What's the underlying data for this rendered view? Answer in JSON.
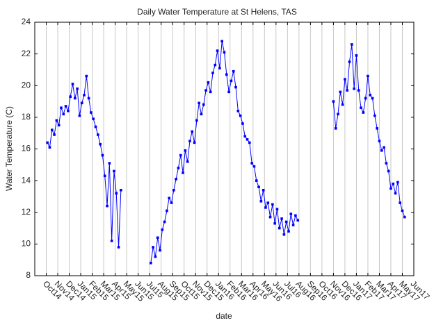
{
  "chart_data": {
    "type": "line",
    "title": "Daily Water Temperature at St Helens, TAS",
    "xlabel": "date",
    "ylabel": "Water Temperature (C)",
    "color": "#0000ff",
    "grid": true,
    "xlim": [
      -1,
      32
    ],
    "ylim": [
      8,
      24
    ],
    "yticks": [
      8,
      10,
      12,
      14,
      16,
      18,
      20,
      22,
      24
    ],
    "xticks": [
      {
        "value": 0,
        "label": "Oct14"
      },
      {
        "value": 1,
        "label": "Nov14"
      },
      {
        "value": 2,
        "label": "Dec14"
      },
      {
        "value": 3,
        "label": "Jan15"
      },
      {
        "value": 4,
        "label": "Feb15"
      },
      {
        "value": 5,
        "label": "Mar15"
      },
      {
        "value": 6,
        "label": "Apr15"
      },
      {
        "value": 7,
        "label": "May15"
      },
      {
        "value": 8,
        "label": "Jun15"
      },
      {
        "value": 9,
        "label": "Jul15"
      },
      {
        "value": 10,
        "label": "Aug15"
      },
      {
        "value": 11,
        "label": "Sep15"
      },
      {
        "value": 12,
        "label": "Oct15"
      },
      {
        "value": 13,
        "label": "Nov15"
      },
      {
        "value": 14,
        "label": "Dec15"
      },
      {
        "value": 15,
        "label": "Jan16"
      },
      {
        "value": 16,
        "label": "Feb16"
      },
      {
        "value": 17,
        "label": "Mar16"
      },
      {
        "value": 18,
        "label": "Apr16"
      },
      {
        "value": 19,
        "label": "May16"
      },
      {
        "value": 20,
        "label": "Jun16"
      },
      {
        "value": 21,
        "label": "Jul16"
      },
      {
        "value": 22,
        "label": "Aug16"
      },
      {
        "value": 23,
        "label": "Sep16"
      },
      {
        "value": 24,
        "label": "Oct16"
      },
      {
        "value": 25,
        "label": "Nov16"
      },
      {
        "value": 26,
        "label": "Dec16"
      },
      {
        "value": 27,
        "label": "Jan17"
      },
      {
        "value": 28,
        "label": "Feb17"
      },
      {
        "value": 29,
        "label": "Mar17"
      },
      {
        "value": 30,
        "label": "Apr17"
      },
      {
        "value": 31,
        "label": "May17"
      },
      {
        "value": 32,
        "label": "Jun17"
      }
    ],
    "x": [
      0.1,
      0.3,
      0.5,
      0.7,
      0.9,
      1.1,
      1.3,
      1.5,
      1.7,
      1.9,
      2.1,
      2.3,
      2.5,
      2.7,
      2.9,
      3.1,
      3.3,
      3.5,
      3.7,
      3.9,
      4.1,
      4.3,
      4.5,
      4.7,
      4.9,
      5.1,
      5.3,
      5.5,
      5.7,
      5.9,
      6.1,
      6.3,
      6.5,
      7.8,
      9.1,
      9.3,
      9.5,
      9.7,
      9.9,
      10.1,
      10.3,
      10.5,
      10.7,
      10.9,
      11.1,
      11.3,
      11.5,
      11.7,
      11.9,
      12.1,
      12.3,
      12.5,
      12.7,
      12.9,
      13.1,
      13.3,
      13.5,
      13.7,
      13.9,
      14.1,
      14.3,
      14.5,
      14.7,
      14.9,
      15.1,
      15.3,
      15.5,
      15.7,
      15.9,
      16.1,
      16.3,
      16.5,
      16.7,
      16.9,
      17.1,
      17.3,
      17.5,
      17.7,
      17.9,
      18.1,
      18.3,
      18.5,
      18.7,
      18.9,
      19.1,
      19.3,
      19.5,
      19.7,
      19.9,
      20.1,
      20.3,
      20.5,
      20.7,
      20.9,
      21.1,
      21.3,
      21.5,
      21.7,
      21.9,
      23.5,
      25.0,
      25.2,
      25.4,
      25.6,
      25.8,
      26.0,
      26.2,
      26.4,
      26.6,
      26.8,
      27.0,
      27.2,
      27.4,
      27.6,
      27.8,
      28.0,
      28.2,
      28.4,
      28.6,
      28.8,
      29.0,
      29.2,
      29.4,
      29.6,
      29.8,
      30.0,
      30.2,
      30.4,
      30.6,
      30.8,
      31.0,
      31.2
    ],
    "values": [
      16.4,
      16.1,
      17.2,
      16.9,
      17.8,
      17.5,
      18.6,
      18.2,
      18.7,
      18.4,
      19.3,
      20.1,
      19.2,
      19.8,
      18.1,
      18.9,
      19.4,
      20.6,
      19.2,
      18.3,
      17.9,
      17.4,
      16.9,
      16.3,
      15.6,
      14.3,
      12.4,
      15.1,
      10.2,
      14.6,
      13.2,
      9.8,
      13.4,
      null,
      8.8,
      9.8,
      9.2,
      10.4,
      9.6,
      10.9,
      11.4,
      12.1,
      12.9,
      12.6,
      13.4,
      14.1,
      14.8,
      15.6,
      14.5,
      15.9,
      15.2,
      16.5,
      17.1,
      16.4,
      17.8,
      18.9,
      18.2,
      18.8,
      19.7,
      20.2,
      19.6,
      20.8,
      21.3,
      22.2,
      21.1,
      22.8,
      22.1,
      20.7,
      19.6,
      20.3,
      20.9,
      19.9,
      18.4,
      18.1,
      17.6,
      16.8,
      16.6,
      16.4,
      15.1,
      14.9,
      14.0,
      13.6,
      12.7,
      13.4,
      12.3,
      12.6,
      11.7,
      12.5,
      11.3,
      12.2,
      11.0,
      11.6,
      10.6,
      11.4,
      10.8,
      11.9,
      11.2,
      11.8,
      11.5,
      null,
      19.0,
      17.3,
      18.2,
      19.6,
      18.8,
      20.4,
      19.7,
      21.5,
      22.6,
      19.8,
      21.9,
      19.7,
      18.6,
      18.3,
      19.2,
      20.6,
      19.4,
      19.2,
      18.1,
      17.3,
      16.5,
      15.9,
      16.1,
      15.1,
      14.6,
      13.5,
      13.8,
      13.2,
      13.9,
      12.6,
      12.1,
      11.7
    ]
  }
}
